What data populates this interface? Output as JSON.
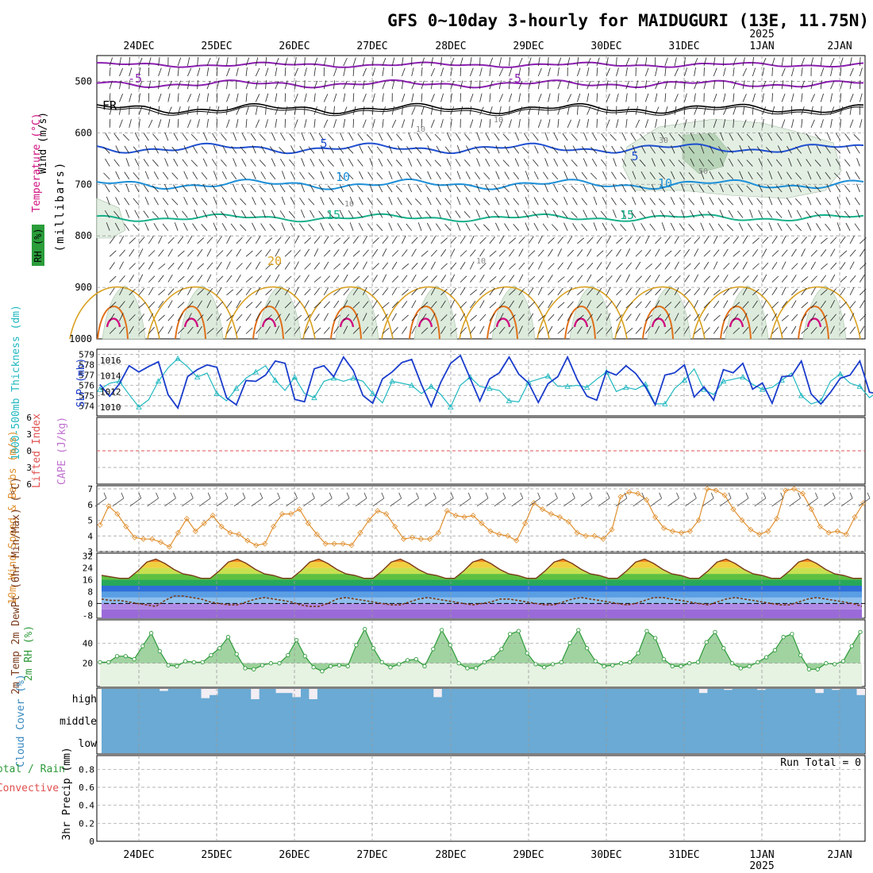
{
  "title": "GFS 0~10day 3-hourly for MAIDUGURI (13E, 11.75N)",
  "year_label": "2025",
  "colors": {
    "temp_purple": "#8b1fb0",
    "freezing": "#000000",
    "temp_blue": "#1f4fd0",
    "temp_lightblue": "#1c8fd8",
    "temp_teal": "#16b08a",
    "temp_gold": "#d9a020",
    "temp_orange": "#e0701a",
    "temp_magenta": "#d01080",
    "slp": "#1a3ccc",
    "thickness": "#20b8c0",
    "wind10m": "#e09030",
    "dewpoint": "#7a3a1a",
    "rh_green": "#2e9a3a",
    "cloud_fill": "#6aaad4",
    "lifted_index": "#e05050",
    "cape": "#c070d0",
    "grid": "#999999"
  },
  "chart_data": [
    {
      "type": "line",
      "name": "upper-air",
      "x": [
        "24DEC",
        "25DEC",
        "26DEC",
        "27DEC",
        "28DEC",
        "29DEC",
        "30DEC",
        "31DEC",
        "1JAN",
        "2JAN"
      ],
      "ylabel_parts": [
        "Wind (m/s)",
        "Temperature (°C)",
        "RH (%)",
        "(millibars)"
      ],
      "yticks": [
        500,
        600,
        700,
        800,
        900,
        1000
      ],
      "ylim": [
        1000,
        450
      ],
      "isotherm_labels": [
        "-5",
        "-5",
        "FR",
        "5",
        "5",
        "10",
        "10",
        "15",
        "15",
        "20"
      ],
      "rh_labels": [
        "10",
        "10",
        "10",
        "10",
        "30",
        "50"
      ]
    },
    {
      "type": "line",
      "name": "slp-thickness",
      "ylabel_left": "1000-500mb Thickness (dm)",
      "ylabel_right": "SLP (mb)",
      "left_ticks": [
        "579",
        "578",
        "577",
        "576",
        "575",
        "574"
      ],
      "right_ticks": [
        "1016",
        "1014",
        "1012",
        "1010"
      ],
      "series": [
        {
          "name": "SLP (mb)",
          "values": [
            1012.9,
            1011.4,
            1013.0,
            1015.3,
            1014.5,
            1015.2,
            1015.8,
            1011.6,
            1009.9,
            1013.9,
            1014.8,
            1015.4,
            1015.1,
            1011.2,
            1010.3,
            1013.4,
            1013.3,
            1014.1,
            1015.9,
            1015.6,
            1011.0,
            1010.7,
            1014.9,
            1015.3,
            1013.9,
            1016.4,
            1014.7,
            1011.5,
            1010.5,
            1013.6,
            1014.5,
            1015.7,
            1016.1,
            1012.9,
            1010.1,
            1013.2,
            1015.6,
            1016.6,
            1013.7,
            1010.8,
            1013.6,
            1014.4,
            1016.4,
            1014.2,
            1013.1,
            1010.6,
            1013.0,
            1013.9,
            1016.4,
            1013.5,
            1011.4,
            1010.9,
            1014.6,
            1014.1,
            1015.3,
            1014.3,
            1012.6,
            1010.3,
            1014.1,
            1014.4,
            1015.4,
            1011.3,
            1012.6,
            1010.9,
            1014.8,
            1014.4,
            1015.6,
            1012.3,
            1013.1,
            1010.5,
            1013.9,
            1014.0,
            1015.9,
            1011.7,
            1010.4,
            1011.9,
            1013.7,
            1014.1,
            1015.9,
            1011.9,
            1011.7,
            1010.6,
            1013.5,
            1013.5,
            1014.7
          ]
        },
        {
          "name": "Thickness (dm)",
          "values": [
            575.6,
            576.2,
            576.4,
            575.1,
            573.9,
            574.6,
            576.4,
            577.7,
            578.6,
            577.8,
            576.8,
            577.2,
            575.2,
            574.5,
            575.7,
            576.7,
            577.3,
            577.9,
            576.5,
            575.5,
            576.8,
            575.2,
            574.8,
            576.4,
            576.7,
            576.4,
            576.7,
            576.4,
            575.2,
            574.3,
            576.4,
            576.2,
            576.0,
            575.2,
            575.9,
            575.1,
            573.9,
            576.0,
            576.8,
            575.9,
            575.7,
            575.5,
            574.5,
            574.4,
            576.3,
            576.6,
            576.9,
            575.9,
            575.9,
            576.0,
            575.8,
            576.6,
            577.3,
            575.4,
            575.8,
            575.6,
            576.1,
            574.2,
            574.2,
            575.7,
            576.5,
            577.6,
            575.6,
            575.1,
            576.4,
            576.6,
            576.8,
            576.1,
            575.6,
            575.8,
            576.5,
            577.2,
            575.0,
            574.2,
            574.5,
            576.4,
            577.1,
            576.2,
            575.9,
            574.8,
            575.5,
            575.1,
            574.6,
            574.2,
            574.3
          ]
        }
      ]
    },
    {
      "type": "line",
      "name": "lifted-index-cape",
      "ylabel_left": "Lifted Index",
      "ylabel_right": "CAPE (J/kg)",
      "yticks": [
        "6",
        "3",
        "0",
        "3",
        "6"
      ],
      "values": []
    },
    {
      "type": "line",
      "name": "wind10m",
      "ylabel": "10m Wind Speed & Barbs (m/s)",
      "yticks": [
        "7",
        "6",
        "5",
        "4",
        "3"
      ],
      "ylim": [
        3,
        7
      ],
      "series": [
        {
          "name": "10m Wind Speed (m/s)",
          "values": [
            4.7,
            5.9,
            5.4,
            4.6,
            3.9,
            3.8,
            3.8,
            3.6,
            3.3,
            4.2,
            5.1,
            4.3,
            4.8,
            5.3,
            4.6,
            4.2,
            4.1,
            3.7,
            3.4,
            3.5,
            4.6,
            5.4,
            5.4,
            5.7,
            4.8,
            4.1,
            3.5,
            3.5,
            3.5,
            3.4,
            4.2,
            5.0,
            5.6,
            5.4,
            4.6,
            3.8,
            3.9,
            3.8,
            3.8,
            4.2,
            5.6,
            5.3,
            5.2,
            5.3,
            4.8,
            4.3,
            4.1,
            4.0,
            3.7,
            4.8,
            6.1,
            5.7,
            5.4,
            5.2,
            4.9,
            4.2,
            4.0,
            4.0,
            3.8,
            4.4,
            6.5,
            6.8,
            6.7,
            6.3,
            5.2,
            4.5,
            4.3,
            4.2,
            4.3,
            5.0,
            7.0,
            6.9,
            6.6,
            5.7,
            5.0,
            4.4,
            4.1,
            4.3,
            5.1,
            6.9,
            7.0,
            6.7,
            5.7,
            4.6,
            4.2,
            4.3,
            4.1,
            5.2,
            6.1
          ]
        }
      ]
    },
    {
      "type": "area",
      "name": "temperature-dewpoint",
      "ylabel": "2m Temp 2m DewPt (6hr Min/Max) (°C)",
      "yticks": [
        "32",
        "24",
        "16",
        "8",
        "0",
        "-8"
      ],
      "ylim": [
        -8,
        32
      ],
      "series": [
        {
          "name": "2m Temp (°C)",
          "values": [
            19,
            18,
            17,
            17,
            22,
            28,
            30,
            27,
            23,
            20,
            19,
            17,
            17,
            22,
            28,
            30,
            27,
            23,
            20,
            19,
            17,
            17,
            22,
            28,
            30,
            27,
            23,
            20,
            19,
            17,
            17,
            22,
            28,
            30,
            27,
            23,
            20,
            19,
            17,
            17,
            22,
            28,
            30,
            27,
            23,
            20,
            19,
            17,
            17,
            22,
            28,
            30,
            27,
            23,
            20,
            19,
            17,
            17,
            22,
            28,
            30,
            27,
            23,
            20,
            19,
            17,
            17,
            22,
            28,
            30,
            27,
            23,
            20,
            19,
            17,
            17,
            22,
            28,
            30,
            27,
            23,
            20,
            19,
            17,
            17
          ]
        },
        {
          "name": "2m DewPt (°C)",
          "values": [
            3,
            2,
            2,
            1,
            0,
            -1,
            -2,
            2,
            5,
            5,
            4,
            3,
            1,
            0,
            -1,
            -1,
            1,
            3,
            4,
            3,
            2,
            1,
            -1,
            -2,
            -2,
            0,
            3,
            4,
            3,
            2,
            1,
            0,
            -1,
            -1,
            1,
            3,
            4,
            3,
            2,
            1,
            0,
            -1,
            0,
            1,
            3,
            3,
            2,
            1,
            0,
            -1,
            -1,
            1,
            3,
            4,
            3,
            2,
            1,
            0,
            -1,
            0,
            2,
            4,
            4,
            3,
            2,
            1,
            0,
            -1,
            1,
            3,
            4,
            3,
            2,
            1,
            0,
            -1,
            -1,
            1,
            3,
            4,
            3,
            2,
            1,
            0,
            -2
          ]
        }
      ]
    },
    {
      "type": "area",
      "name": "rh2m",
      "ylabel": "2m RH (%)",
      "yticks": [
        "40",
        "20"
      ],
      "series": [
        {
          "name": "2m RH (%)",
          "values": [
            21,
            21,
            27,
            27,
            24,
            37,
            50,
            32,
            18,
            17,
            22,
            21,
            21,
            28,
            35,
            46,
            29,
            15,
            14,
            18,
            20,
            20,
            28,
            43,
            27,
            16,
            12,
            17,
            18,
            17,
            38,
            54,
            35,
            21,
            16,
            19,
            23,
            24,
            17,
            34,
            53,
            38,
            20,
            15,
            15,
            21,
            25,
            34,
            49,
            52,
            30,
            19,
            16,
            19,
            21,
            40,
            53,
            35,
            22,
            17,
            18,
            20,
            21,
            30,
            52,
            45,
            24,
            17,
            17,
            20,
            21,
            41,
            51,
            35,
            20,
            15,
            17,
            21,
            26,
            33,
            46,
            49,
            28,
            14,
            14,
            20,
            19,
            22,
            37,
            51
          ]
        }
      ]
    },
    {
      "type": "bar",
      "name": "cloud-cover",
      "ylabel": "Cloud Cover (%)",
      "levels": [
        "high",
        "middle",
        "low"
      ],
      "series": [
        {
          "name": "high cloud (%)",
          "values": [
            0,
            0,
            0,
            0,
            0,
            0,
            0,
            10,
            0,
            0,
            0,
            0,
            45,
            30,
            0,
            0,
            0,
            0,
            50,
            0,
            0,
            20,
            20,
            40,
            0,
            50,
            0,
            0,
            0,
            0,
            0,
            0,
            0,
            0,
            0,
            0,
            0,
            0,
            0,
            0,
            40,
            0,
            0,
            0,
            0,
            0,
            0,
            0,
            0,
            0,
            0,
            0,
            0,
            0,
            0,
            0,
            0,
            0,
            0,
            0,
            0,
            0,
            0,
            0,
            0,
            0,
            0,
            0,
            0,
            0,
            0,
            0,
            20,
            0,
            0,
            5,
            0,
            0,
            0,
            5,
            0,
            0,
            0,
            0,
            0,
            0,
            20,
            0,
            5,
            0,
            0,
            30
          ]
        }
      ]
    },
    {
      "type": "bar",
      "name": "precip",
      "ylabel_parts": [
        "Total / Rain",
        "Convective",
        "3hr Precip (mm)"
      ],
      "yticks": [
        "0.8",
        "0.6",
        "0.4",
        "0.2",
        "0"
      ],
      "ylim": [
        0,
        0.9
      ],
      "run_total": "Run Total = 0",
      "values": []
    }
  ]
}
